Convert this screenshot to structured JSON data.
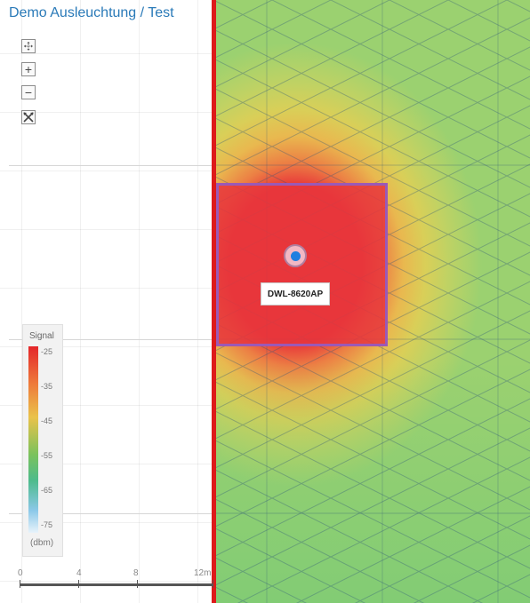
{
  "title": "Demo Ausleuchtung / Test",
  "toolbar": {
    "fit_icon": "⤧",
    "zoom_in": "+",
    "zoom_out": "−",
    "reset_icon": "✕"
  },
  "access_point": {
    "label": "DWL-8620AP"
  },
  "legend": {
    "title": "Signal",
    "unit": "(dbm)",
    "ticks": [
      "-25",
      "-35",
      "-45",
      "-55",
      "-65",
      "-75"
    ],
    "colors": [
      "#e4262a",
      "#ee7a3b",
      "#eac24a",
      "#7bc25c",
      "#4dbb8c",
      "#8bc8e8"
    ]
  },
  "scale": {
    "labels": [
      "0",
      "4",
      "8",
      "12m"
    ]
  },
  "colors": {
    "wall": "#dd1a1a",
    "room_border": "#9b59b6",
    "access_point_dot": "#1e7fe0",
    "title": "#2a7ab8"
  }
}
